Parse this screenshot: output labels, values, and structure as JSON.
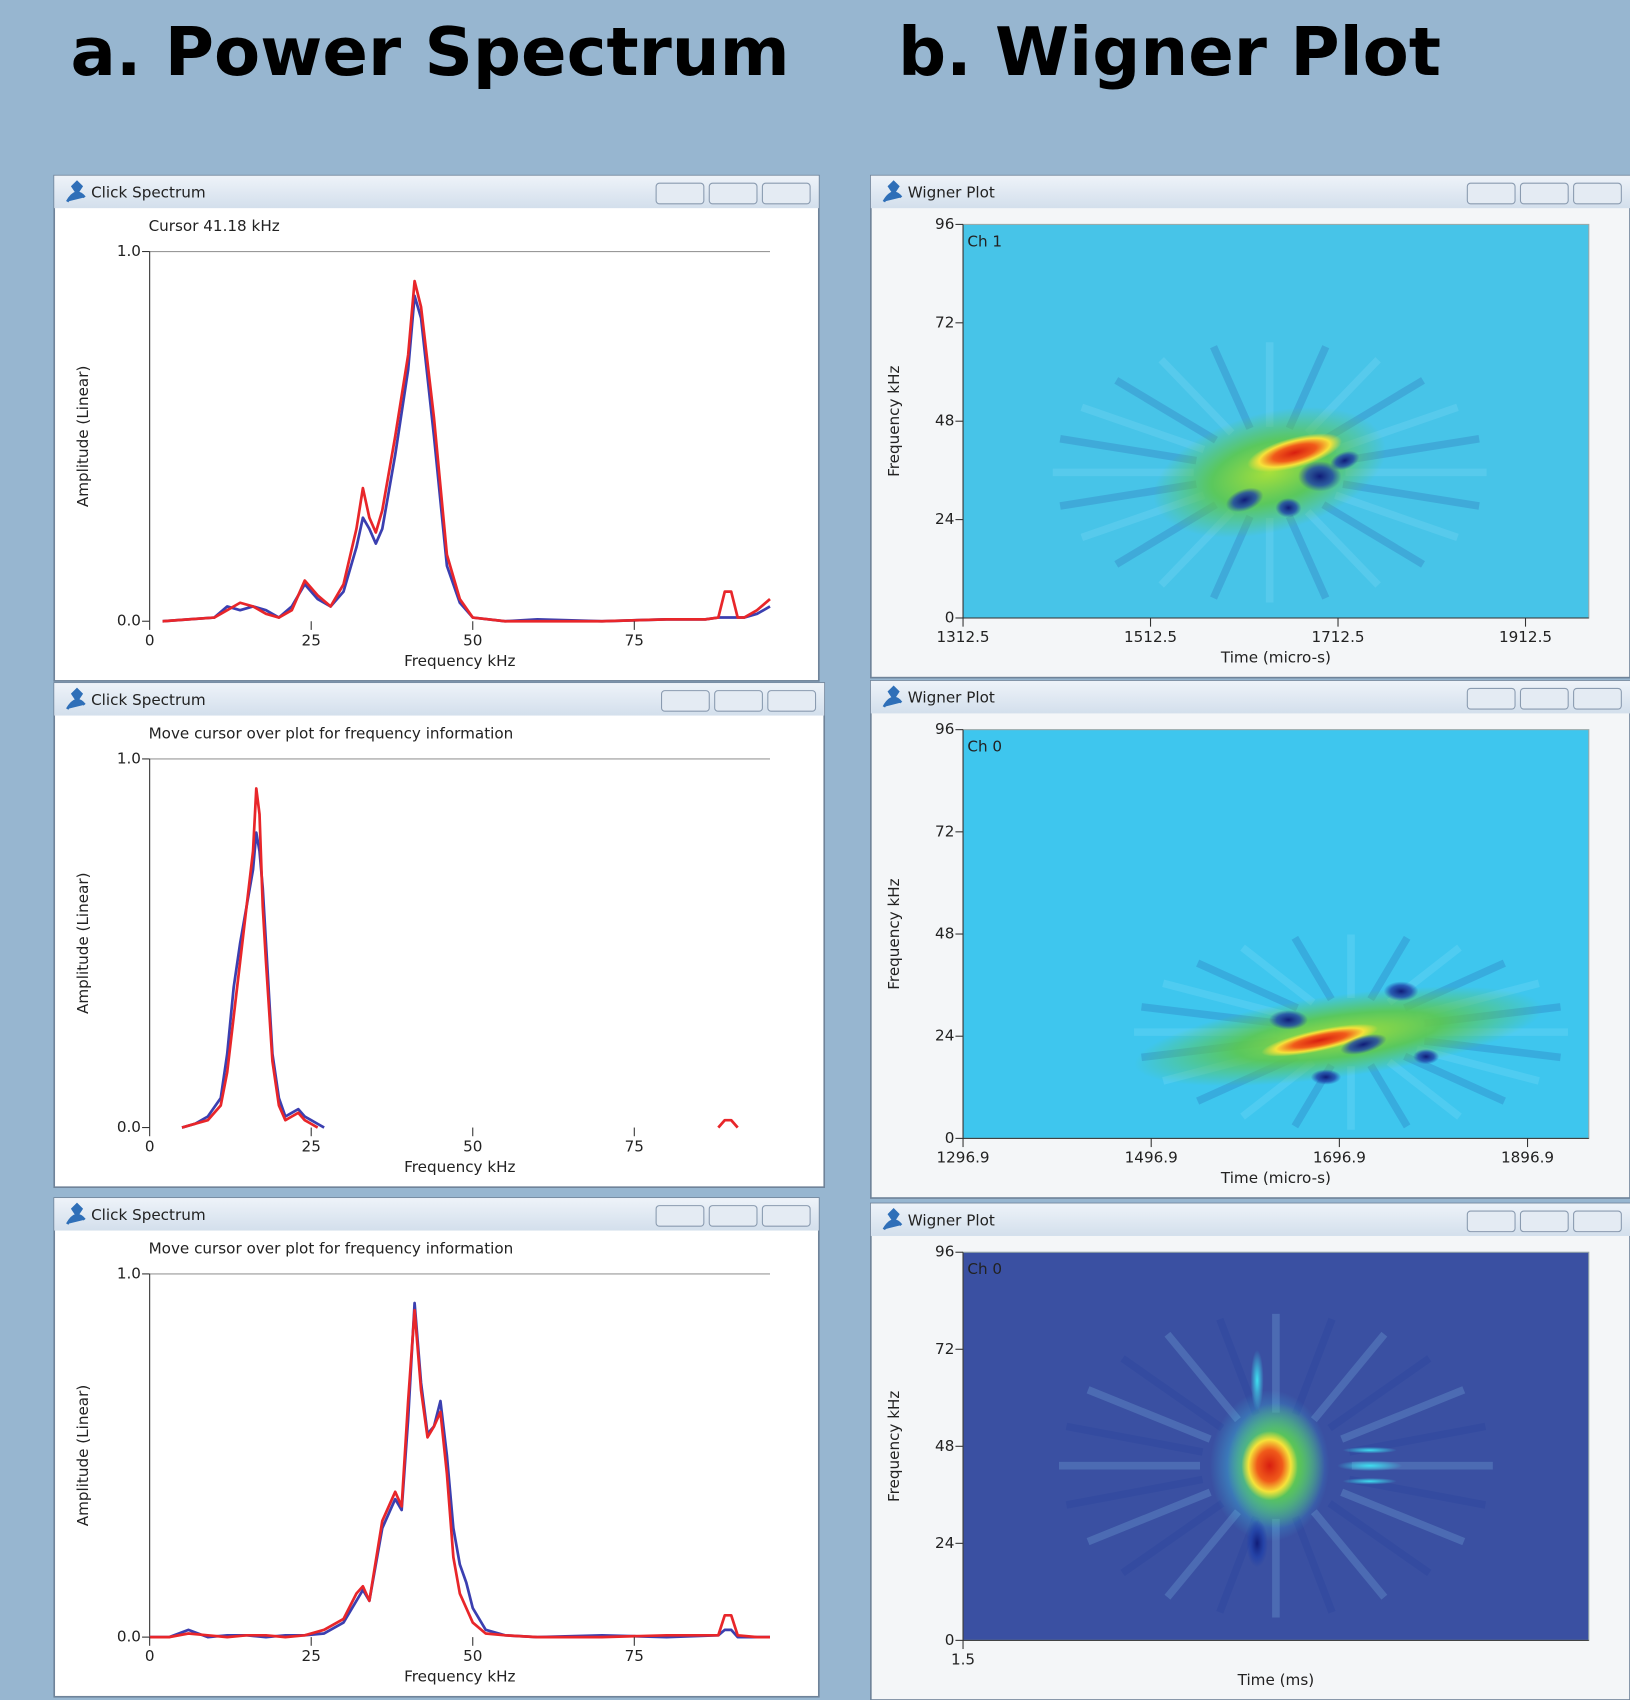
{
  "headings": [
    "a. Power Spectrum",
    "b. Wigner Plot"
  ],
  "chart_data": [
    {
      "type": "line",
      "window_title": "Click Spectrum",
      "status": "Cursor 41.18 kHz",
      "xlabel": "Frequency kHz",
      "ylabel": "Amplitude (Linear)",
      "xlim": [
        0,
        96
      ],
      "xticks": [
        0,
        25,
        50,
        75
      ],
      "ylim": [
        0,
        1
      ],
      "yticks": [
        {
          "value": 0,
          "label": "0.0"
        },
        {
          "value": 1,
          "label": "1.0"
        }
      ],
      "x": [
        2,
        6,
        10,
        12,
        14,
        16,
        18,
        20,
        22,
        24,
        26,
        28,
        30,
        32,
        33,
        34,
        35,
        36,
        38,
        40,
        41,
        42,
        44,
        46,
        48,
        50,
        55,
        60,
        70,
        80,
        86,
        88,
        89,
        90,
        91,
        92,
        94,
        96
      ],
      "series": [
        {
          "color": "#3b3fb0",
          "values": [
            0,
            0.005,
            0.01,
            0.04,
            0.03,
            0.04,
            0.03,
            0.01,
            0.04,
            0.1,
            0.06,
            0.04,
            0.08,
            0.2,
            0.28,
            0.25,
            0.21,
            0.25,
            0.45,
            0.68,
            0.88,
            0.82,
            0.5,
            0.15,
            0.05,
            0.01,
            0,
            0.005,
            0,
            0.005,
            0.005,
            0.01,
            0.01,
            0.01,
            0.01,
            0.01,
            0.02,
            0.04
          ]
        },
        {
          "color": "#e8262a",
          "values": [
            0,
            0.005,
            0.01,
            0.03,
            0.05,
            0.04,
            0.02,
            0.01,
            0.03,
            0.11,
            0.07,
            0.04,
            0.1,
            0.25,
            0.36,
            0.28,
            0.24,
            0.3,
            0.5,
            0.72,
            0.92,
            0.85,
            0.55,
            0.18,
            0.06,
            0.01,
            0,
            0,
            0,
            0.005,
            0.005,
            0.01,
            0.08,
            0.08,
            0.01,
            0.01,
            0.03,
            0.06
          ]
        }
      ]
    },
    {
      "type": "line",
      "window_title": "Click Spectrum",
      "status": "Move cursor over plot for frequency information",
      "xlabel": "Frequency kHz",
      "ylabel": "Amplitude (Linear)",
      "xlim": [
        0,
        96
      ],
      "xticks": [
        0,
        25,
        50,
        75
      ],
      "ylim": [
        0,
        1
      ],
      "yticks": [
        {
          "value": 0,
          "label": "0.0"
        },
        {
          "value": 1,
          "label": "1.0"
        }
      ],
      "x": [
        5,
        7,
        9,
        11,
        12,
        13,
        14,
        15,
        16,
        16.5,
        17,
        17.5,
        18,
        19,
        20,
        21,
        22,
        23,
        24,
        25,
        26,
        27,
        88,
        89,
        90,
        91
      ],
      "series": [
        {
          "color": "#3b3fb0",
          "values": [
            0,
            0.01,
            0.03,
            0.08,
            0.2,
            0.38,
            0.5,
            0.6,
            0.7,
            0.8,
            0.75,
            0.65,
            0.5,
            0.2,
            0.08,
            0.03,
            0.04,
            0.05,
            0.03,
            0.02,
            0.01,
            0,
            null,
            null,
            null,
            null
          ]
        },
        {
          "color": "#e8262a",
          "values": [
            0,
            0.01,
            0.02,
            0.06,
            0.15,
            0.3,
            0.45,
            0.6,
            0.75,
            0.92,
            0.85,
            0.6,
            0.45,
            0.18,
            0.06,
            0.02,
            0.03,
            0.04,
            0.02,
            0.01,
            0,
            null,
            0,
            0.02,
            0.02,
            0
          ]
        }
      ]
    },
    {
      "type": "line",
      "window_title": "Click Spectrum",
      "status": "Move cursor over plot for frequency information",
      "xlabel": "Frequency kHz",
      "ylabel": "Amplitude (Linear)",
      "xlim": [
        0,
        96
      ],
      "xticks": [
        0,
        25,
        50,
        75
      ],
      "ylim": [
        0,
        1
      ],
      "yticks": [
        {
          "value": 0,
          "label": "0.0"
        },
        {
          "value": 1,
          "label": "1.0"
        }
      ],
      "x": [
        0,
        3,
        6,
        9,
        12,
        15,
        18,
        21,
        24,
        27,
        30,
        32,
        33,
        34,
        36,
        38,
        39,
        40,
        41,
        42,
        43,
        44,
        45,
        46,
        47,
        48,
        49,
        50,
        52,
        55,
        60,
        70,
        80,
        88,
        89,
        90,
        91,
        94,
        96
      ],
      "series": [
        {
          "color": "#3b3fb0",
          "values": [
            0,
            0,
            0.02,
            0,
            0.005,
            0.005,
            0,
            0.005,
            0.005,
            0.01,
            0.04,
            0.1,
            0.13,
            0.1,
            0.3,
            0.38,
            0.35,
            0.6,
            0.92,
            0.7,
            0.56,
            0.58,
            0.65,
            0.5,
            0.3,
            0.2,
            0.15,
            0.08,
            0.02,
            0.005,
            0,
            0.005,
            0,
            0.005,
            0.02,
            0.02,
            0,
            0,
            0
          ]
        },
        {
          "color": "#e8262a",
          "values": [
            0,
            0,
            0.01,
            0.005,
            0,
            0.005,
            0.005,
            0,
            0.005,
            0.02,
            0.05,
            0.12,
            0.14,
            0.1,
            0.32,
            0.4,
            0.36,
            0.65,
            0.9,
            0.68,
            0.55,
            0.58,
            0.62,
            0.45,
            0.22,
            0.12,
            0.08,
            0.04,
            0.01,
            0.005,
            0,
            0,
            0.005,
            0.005,
            0.06,
            0.06,
            0.005,
            0,
            0
          ]
        }
      ]
    },
    {
      "type": "heatmap",
      "window_title": "Wigner Plot",
      "channel": "Ch 1",
      "xlabel": "Time (micro-s)",
      "ylabel": "Frequency kHz",
      "xlim": [
        1312.5,
        1980
      ],
      "xticks": [
        1312.5,
        1512.5,
        1712.5,
        1912.5
      ],
      "ylim": [
        0,
        96
      ],
      "yticks": [
        0,
        24,
        48,
        72,
        96
      ],
      "background": "#47c4e8"
    },
    {
      "type": "heatmap",
      "window_title": "Wigner Plot",
      "channel": "Ch 0",
      "xlabel": "Time (micro-s)",
      "ylabel": "Frequency kHz",
      "xlim": [
        1296.9,
        1962
      ],
      "xticks": [
        1296.9,
        1496.9,
        1696.9,
        1896.9
      ],
      "ylim": [
        0,
        96
      ],
      "yticks": [
        0,
        24,
        48,
        72,
        96
      ],
      "background": "#3ec6ee"
    },
    {
      "type": "heatmap",
      "window_title": "Wigner Plot",
      "channel": "Ch 0",
      "xlabel": "Time (ms)",
      "ylabel": "Frequency kHz",
      "xlim": [
        1.5,
        2.17
      ],
      "xticks": [
        1.5
      ],
      "ylim": [
        0,
        96
      ],
      "yticks": [
        0,
        24,
        48,
        72,
        96
      ],
      "background": "#3a50a2"
    }
  ]
}
